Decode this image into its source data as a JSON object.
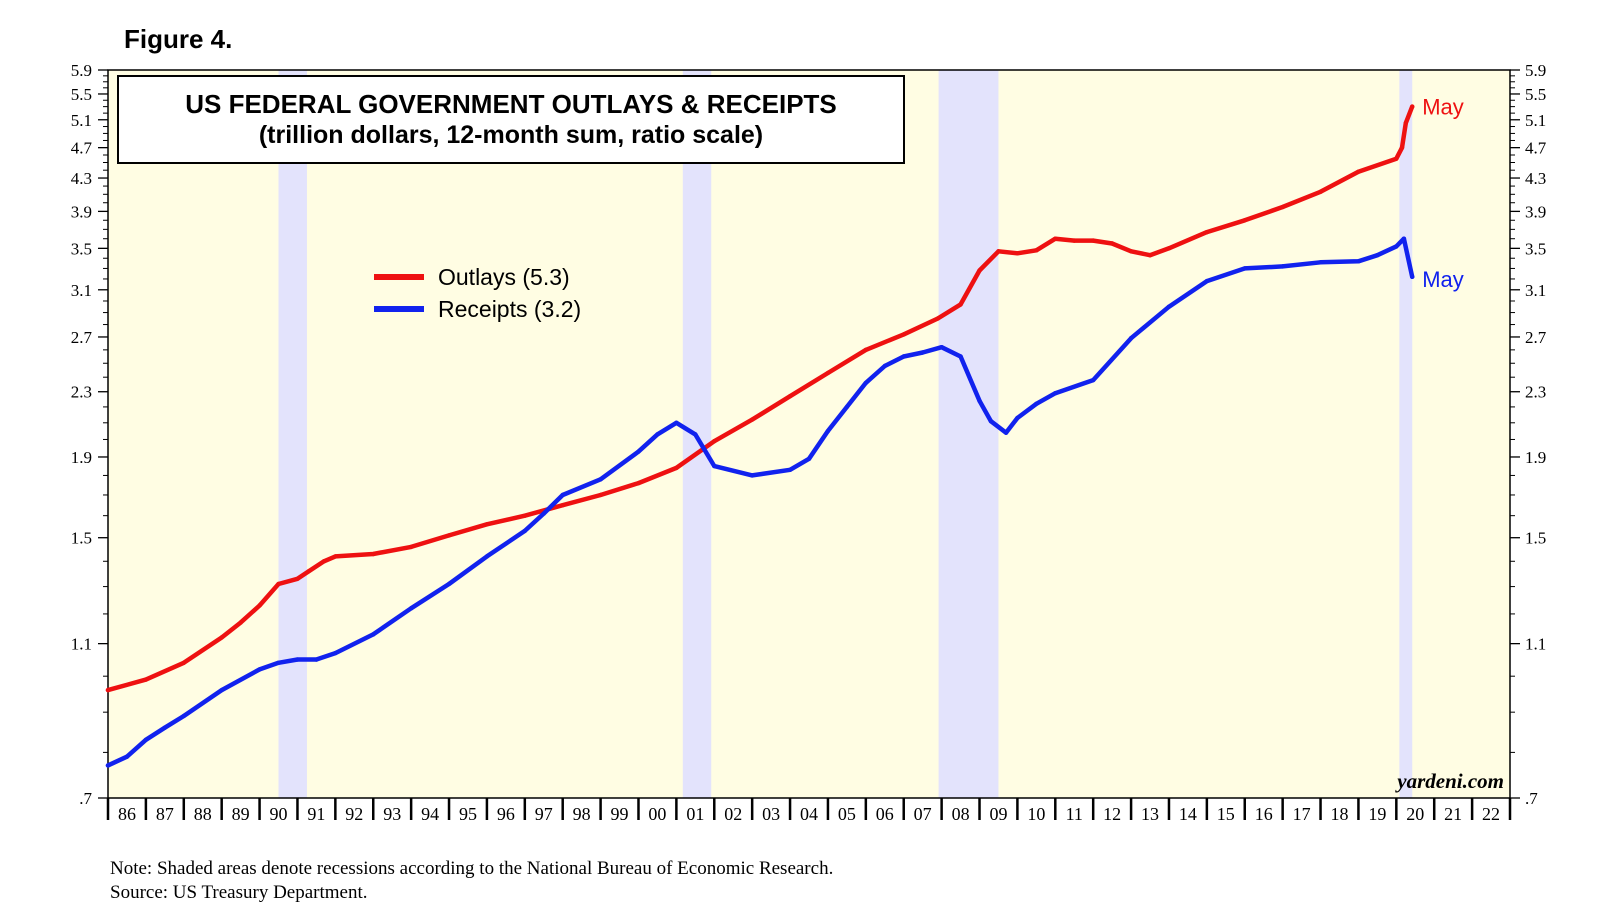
{
  "figure_label": "Figure 4.",
  "note": "Note: Shaded areas denote recessions according to the National Bureau of Economic Research.",
  "source": "Source: US Treasury Department.",
  "colors": {
    "outlays": "#ee1111",
    "receipts": "#1122ee",
    "background": "#fffde3",
    "recession": "#e3e3fc"
  },
  "chart_data": {
    "type": "line",
    "title": "US FEDERAL GOVERNMENT OUTLAYS & RECEIPTS",
    "subtitle": "(trillion dollars, 12-month sum, ratio scale)",
    "scale": "log",
    "ylim": [
      0.7,
      5.9
    ],
    "y_ticks": [
      {
        "value": 0.7,
        "label": ".7"
      },
      {
        "value": 1.1,
        "label": "1.1"
      },
      {
        "value": 1.5,
        "label": "1.5"
      },
      {
        "value": 1.9,
        "label": "1.9"
      },
      {
        "value": 2.3,
        "label": "2.3"
      },
      {
        "value": 2.7,
        "label": "2.7"
      },
      {
        "value": 3.1,
        "label": "3.1"
      },
      {
        "value": 3.5,
        "label": "3.5"
      },
      {
        "value": 3.9,
        "label": "3.9"
      },
      {
        "value": 4.3,
        "label": "4.3"
      },
      {
        "value": 4.7,
        "label": "4.7"
      },
      {
        "value": 5.1,
        "label": "5.1"
      },
      {
        "value": 5.5,
        "label": "5.5"
      },
      {
        "value": 5.9,
        "label": "5.9"
      }
    ],
    "y_minor_ticks": [
      0.8,
      0.9,
      1.0,
      1.2,
      1.3,
      1.4,
      1.6,
      1.7,
      1.8,
      2.0,
      2.1,
      2.2,
      2.4,
      2.5,
      2.6,
      2.8,
      2.9,
      3.0,
      3.2,
      3.3,
      3.4,
      3.6,
      3.7,
      3.8,
      4.0,
      4.1,
      4.2,
      4.4,
      4.5,
      4.6,
      4.8,
      4.9,
      5.0,
      5.2,
      5.3,
      5.4,
      5.6,
      5.7,
      5.8
    ],
    "xlim": [
      1986.0,
      2023.0
    ],
    "x_labels": [
      "86",
      "87",
      "88",
      "89",
      "90",
      "91",
      "92",
      "93",
      "94",
      "95",
      "96",
      "97",
      "98",
      "99",
      "00",
      "01",
      "02",
      "03",
      "04",
      "05",
      "06",
      "07",
      "08",
      "09",
      "10",
      "11",
      "12",
      "13",
      "14",
      "15",
      "16",
      "17",
      "18",
      "19",
      "20",
      "21",
      "22"
    ],
    "recessions": [
      [
        1990.5,
        1991.25
      ],
      [
        2001.17,
        2001.92
      ],
      [
        2007.92,
        2009.5
      ],
      [
        2020.08,
        2020.42
      ]
    ],
    "legend": [
      {
        "name": "Outlays (5.3)",
        "color": "#ee1111"
      },
      {
        "name": "Receipts (3.2)",
        "color": "#1122ee"
      }
    ],
    "end_labels": [
      {
        "series": "Outlays",
        "text": "May",
        "value": 5.3
      },
      {
        "series": "Receipts",
        "text": "May",
        "value": 3.2
      }
    ],
    "watermark": "yardeni.com",
    "series": [
      {
        "name": "Outlays",
        "color": "#ee1111",
        "x": [
          1986.0,
          1987.0,
          1988.0,
          1989.0,
          1989.5,
          1990.0,
          1990.5,
          1991.0,
          1991.3,
          1991.7,
          1992.0,
          1993.0,
          1994.0,
          1995.0,
          1996.0,
          1997.0,
          1998.0,
          1999.0,
          2000.0,
          2001.0,
          2002.0,
          2003.0,
          2004.0,
          2005.0,
          2006.0,
          2007.0,
          2007.9,
          2008.5,
          2009.0,
          2009.5,
          2010.0,
          2010.5,
          2011.0,
          2011.5,
          2012.0,
          2012.5,
          2013.0,
          2013.5,
          2014.0,
          2015.0,
          2016.0,
          2017.0,
          2018.0,
          2019.0,
          2020.0,
          2020.15,
          2020.25,
          2020.42
        ],
        "values": [
          0.96,
          0.99,
          1.04,
          1.12,
          1.17,
          1.23,
          1.31,
          1.33,
          1.36,
          1.4,
          1.42,
          1.43,
          1.46,
          1.51,
          1.56,
          1.6,
          1.65,
          1.7,
          1.76,
          1.84,
          1.99,
          2.12,
          2.27,
          2.43,
          2.6,
          2.72,
          2.85,
          2.97,
          3.28,
          3.47,
          3.45,
          3.48,
          3.6,
          3.58,
          3.58,
          3.55,
          3.47,
          3.43,
          3.5,
          3.67,
          3.8,
          3.95,
          4.13,
          4.38,
          4.55,
          4.7,
          5.05,
          5.3
        ]
      },
      {
        "name": "Receipts",
        "color": "#1122ee",
        "x": [
          1986.0,
          1986.5,
          1987.0,
          1987.5,
          1988.0,
          1989.0,
          1990.0,
          1990.5,
          1991.0,
          1991.5,
          1992.0,
          1993.0,
          1994.0,
          1995.0,
          1996.0,
          1997.0,
          1997.5,
          1998.0,
          1999.0,
          2000.0,
          2000.5,
          2001.0,
          2001.5,
          2002.0,
          2003.0,
          2004.0,
          2004.5,
          2005.0,
          2005.5,
          2006.0,
          2006.5,
          2007.0,
          2007.5,
          2008.0,
          2008.5,
          2009.0,
          2009.3,
          2009.7,
          2010.0,
          2010.5,
          2011.0,
          2012.0,
          2013.0,
          2014.0,
          2015.0,
          2016.0,
          2017.0,
          2018.0,
          2019.0,
          2019.5,
          2020.0,
          2020.2,
          2020.42
        ],
        "values": [
          0.77,
          0.79,
          0.83,
          0.86,
          0.89,
          0.96,
          1.02,
          1.04,
          1.05,
          1.05,
          1.07,
          1.13,
          1.22,
          1.31,
          1.42,
          1.53,
          1.61,
          1.7,
          1.78,
          1.93,
          2.03,
          2.1,
          2.03,
          1.85,
          1.8,
          1.83,
          1.89,
          2.05,
          2.2,
          2.36,
          2.48,
          2.55,
          2.58,
          2.62,
          2.55,
          2.24,
          2.11,
          2.04,
          2.13,
          2.22,
          2.29,
          2.38,
          2.69,
          2.95,
          3.18,
          3.3,
          3.32,
          3.36,
          3.37,
          3.43,
          3.52,
          3.6,
          3.22
        ]
      }
    ]
  }
}
